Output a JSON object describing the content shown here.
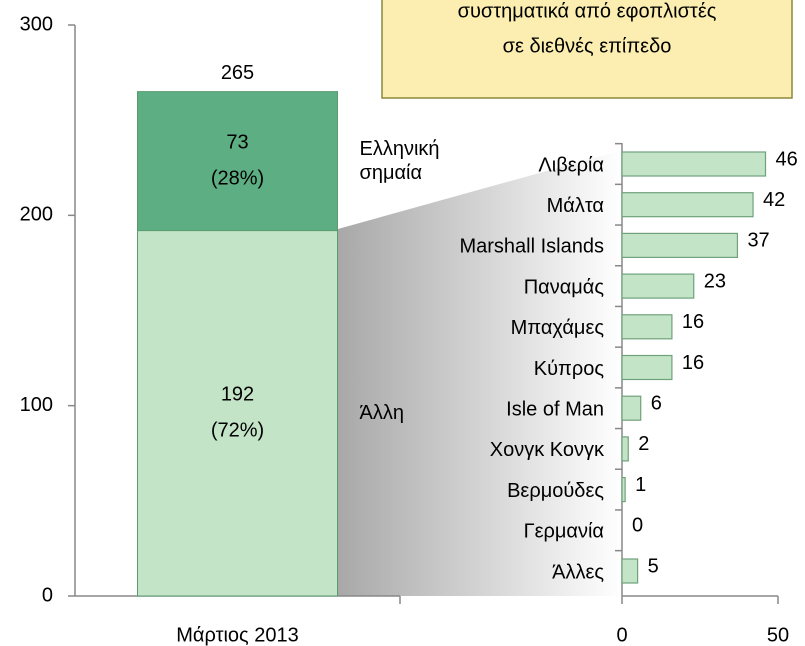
{
  "annotation": [
    "συστηματικά από εφοπλιστές",
    "σε διεθνές επίπεδο"
  ],
  "chart_data": [
    {
      "type": "stacked_bar",
      "categories": [
        "Μάρτιος 2013"
      ],
      "series": [
        {
          "name": "Άλλη",
          "color": "#c3e4c7",
          "values": [
            192
          ],
          "value_labels": [
            [
              "192",
              "(72%)"
            ]
          ]
        },
        {
          "name": "Ελληνική σημαία",
          "color": "#5dae83",
          "values": [
            73
          ],
          "value_labels": [
            [
              "73",
              "(28%)"
            ]
          ]
        }
      ],
      "totals": [
        265
      ],
      "ylim": [
        0,
        300
      ],
      "yticks": [
        0,
        100,
        200,
        300
      ]
    },
    {
      "type": "hbar",
      "categories": [
        "Λιβερία",
        "Μάλτα",
        "Marshall Islands",
        "Παναμάς",
        "Μπαχάμες",
        "Κύπρος",
        "Isle of Man",
        "Χονγκ Κονγκ",
        "Βερμούδες",
        "Γερμανία",
        "Άλλες"
      ],
      "values": [
        46,
        42,
        37,
        23,
        16,
        16,
        6,
        2,
        1,
        0,
        5
      ],
      "color": "#c3e4c7",
      "xlim": [
        0,
        50
      ],
      "xticks": [
        0,
        50
      ]
    }
  ]
}
